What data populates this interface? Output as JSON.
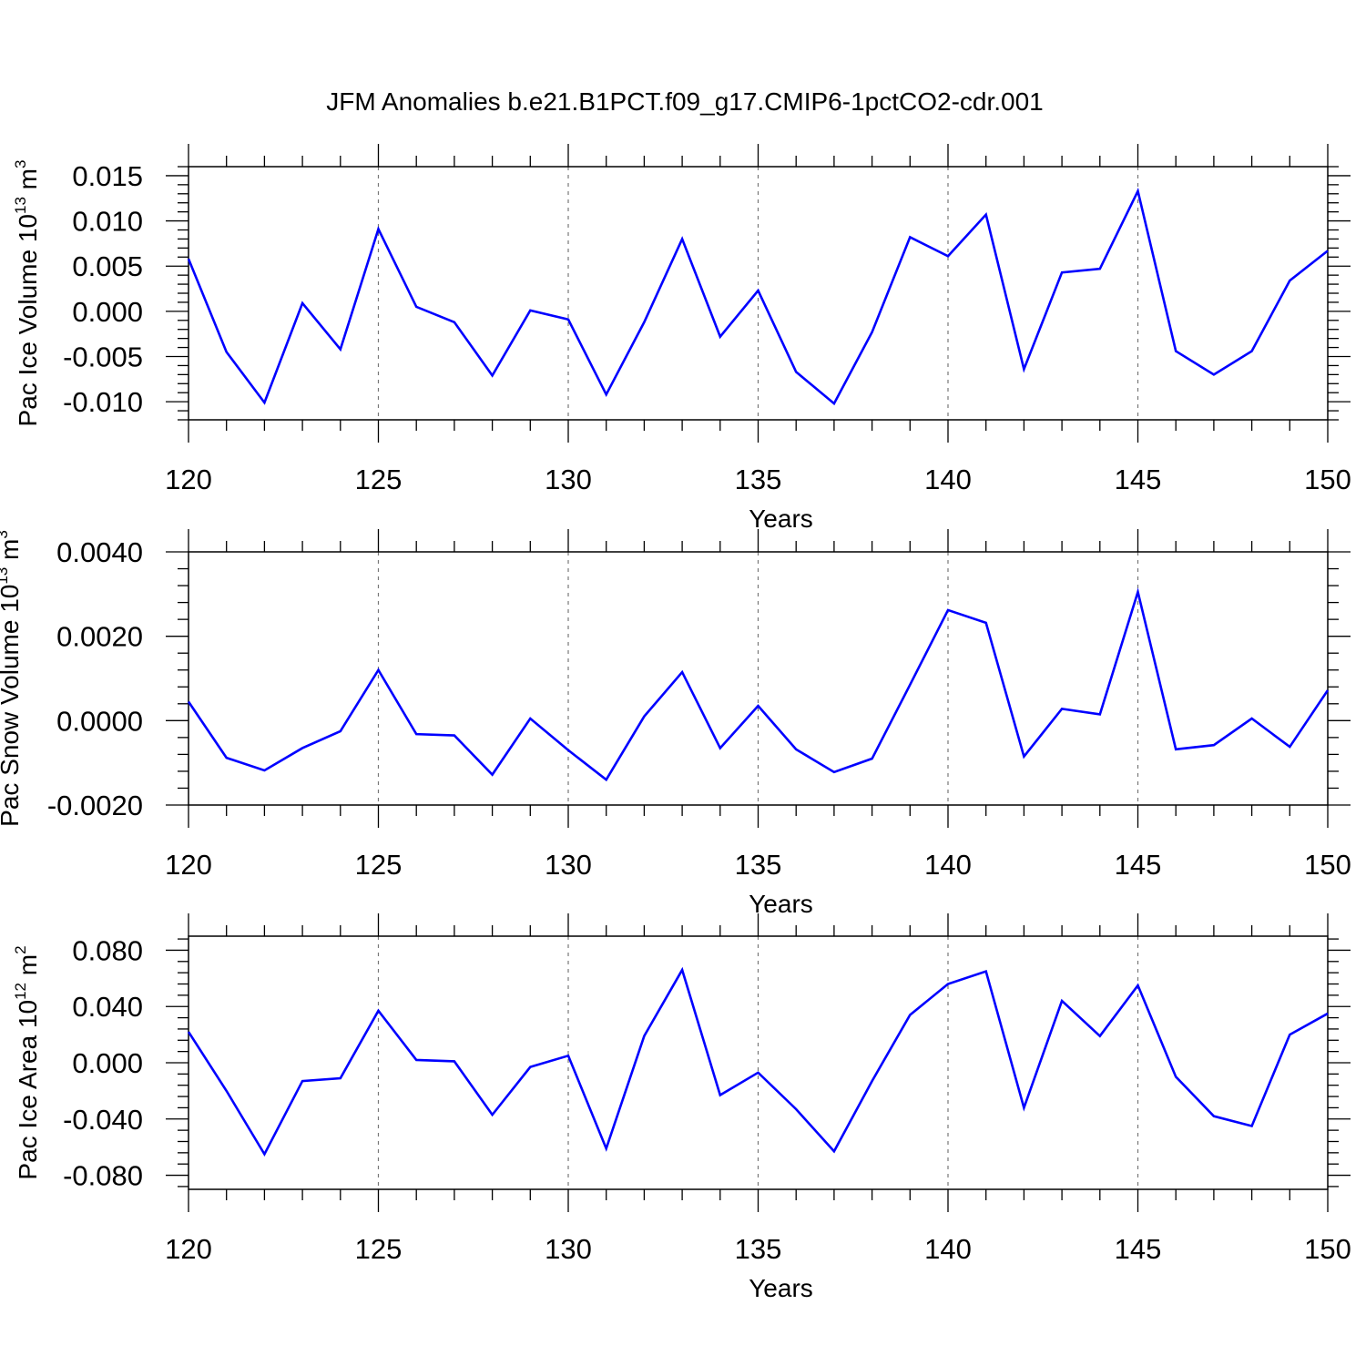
{
  "chart_data": [
    {
      "type": "line",
      "title": "JFM Anomalies b.e21.B1PCT.f09_g17.CMIP6-1pctCO2-cdr.001",
      "xlabel": "Years",
      "ylabel": "Pac Ice Volume 10",
      "ylabel_exp": "13",
      "ylabel_unit": " m",
      "ylabel_unit_exp": "3",
      "xlim": [
        120,
        150
      ],
      "ylim": [
        -0.012,
        0.016
      ],
      "x_ticks": [
        "120",
        "125",
        "130",
        "135",
        "140",
        "145",
        "150"
      ],
      "y_ticks": [
        "-0.010",
        "-0.005",
        "0.000",
        "0.005",
        "0.010",
        "0.015"
      ],
      "grid": "vertical dashed at major x ticks",
      "color": "#0000ff",
      "x": [
        120,
        121,
        122,
        123,
        124,
        125,
        126,
        127,
        128,
        129,
        130,
        131,
        132,
        133,
        134,
        135,
        136,
        137,
        138,
        139,
        140,
        141,
        142,
        143,
        144,
        145,
        146,
        147,
        148,
        149,
        150
      ],
      "values": [
        0.0058,
        -0.0045,
        -0.0101,
        0.0009,
        -0.0042,
        0.0091,
        0.0005,
        -0.0012,
        -0.0071,
        0.0001,
        -0.0009,
        -0.0092,
        -0.0012,
        0.008,
        -0.0028,
        0.0023,
        -0.0067,
        -0.0102,
        -0.0023,
        0.0082,
        0.0061,
        0.0107,
        -0.0064,
        0.0043,
        0.0047,
        0.0133,
        -0.0044,
        -0.007,
        -0.0044,
        0.0034,
        0.0067
      ]
    },
    {
      "type": "line",
      "xlabel": "Years",
      "ylabel": "Pac Snow Volume 10",
      "ylabel_exp": "13",
      "ylabel_unit": " m",
      "ylabel_unit_exp": "3",
      "xlim": [
        120,
        150
      ],
      "ylim": [
        -0.002,
        0.004
      ],
      "x_ticks": [
        "120",
        "125",
        "130",
        "135",
        "140",
        "145",
        "150"
      ],
      "y_ticks": [
        "-0.0020",
        "0.0000",
        "0.0020",
        "0.0040"
      ],
      "grid": "vertical dashed at major x ticks",
      "color": "#0000ff",
      "x": [
        120,
        121,
        122,
        123,
        124,
        125,
        126,
        127,
        128,
        129,
        130,
        131,
        132,
        133,
        134,
        135,
        136,
        137,
        138,
        139,
        140,
        141,
        142,
        143,
        144,
        145,
        146,
        147,
        148,
        149,
        150
      ],
      "values": [
        0.00045,
        -0.00088,
        -0.00118,
        -0.00065,
        -0.00025,
        0.0012,
        -0.00032,
        -0.00035,
        -0.00128,
        5e-05,
        -0.0007,
        -0.0014,
        0.0001,
        0.00115,
        -0.00065,
        0.00035,
        -0.00068,
        -0.00122,
        -0.0009,
        0.00085,
        0.00262,
        0.00232,
        -0.00085,
        0.00028,
        0.00015,
        0.00305,
        -0.00068,
        -0.00058,
        5e-05,
        -0.00062,
        0.00072
      ]
    },
    {
      "type": "line",
      "xlabel": "Years",
      "ylabel": "Pac Ice Area 10",
      "ylabel_exp": "12",
      "ylabel_unit": " m",
      "ylabel_unit_exp": "2",
      "xlim": [
        120,
        150
      ],
      "ylim": [
        -0.09,
        0.09
      ],
      "x_ticks": [
        "120",
        "125",
        "130",
        "135",
        "140",
        "145",
        "150"
      ],
      "y_ticks": [
        "-0.080",
        "-0.040",
        "0.000",
        "0.040",
        "0.080"
      ],
      "grid": "vertical dashed at major x ticks",
      "color": "#0000ff",
      "x": [
        120,
        121,
        122,
        123,
        124,
        125,
        126,
        127,
        128,
        129,
        130,
        131,
        132,
        133,
        134,
        135,
        136,
        137,
        138,
        139,
        140,
        141,
        142,
        143,
        144,
        145,
        146,
        147,
        148,
        149,
        150
      ],
      "values": [
        0.022,
        -0.02,
        -0.065,
        -0.013,
        -0.011,
        0.037,
        0.002,
        0.001,
        -0.037,
        -0.003,
        0.005,
        -0.061,
        0.019,
        0.066,
        -0.023,
        -0.007,
        -0.033,
        -0.063,
        -0.013,
        0.034,
        0.056,
        0.065,
        -0.032,
        0.044,
        0.019,
        0.055,
        -0.01,
        -0.038,
        -0.045,
        0.02,
        0.035
      ]
    }
  ]
}
